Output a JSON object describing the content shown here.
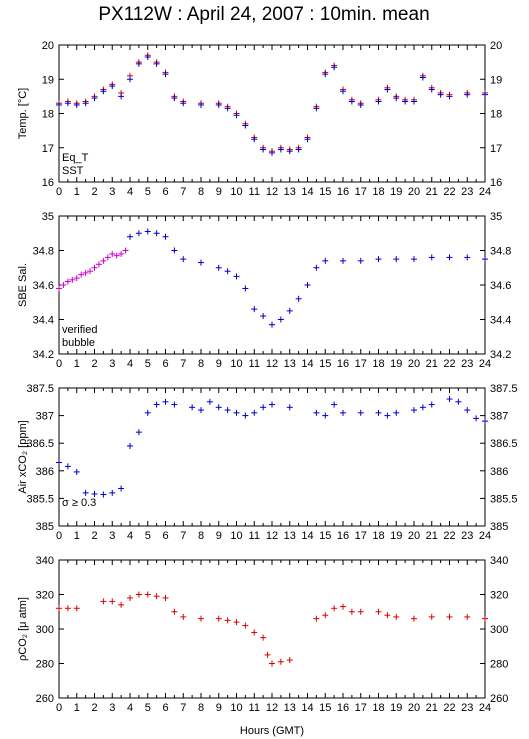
{
  "title": "PX112W : April 24, 2007 : 10min. mean",
  "xlabel": "Hours (GMT)",
  "x_ticks": [
    "0",
    "1",
    "2",
    "3",
    "4",
    "5",
    "6",
    "7",
    "8",
    "9",
    "10",
    "11",
    "12",
    "13",
    "14",
    "15",
    "16",
    "17",
    "18",
    "19",
    "20",
    "21",
    "22",
    "23",
    "24"
  ],
  "colors": {
    "red": "#dd0000",
    "blue": "#0000cc",
    "magenta": "#cc00cc",
    "black": "#000000"
  },
  "chart_data": [
    {
      "type": "scatter",
      "ylabel": "Temp. [°C]",
      "xlim": [
        0,
        24
      ],
      "ylim": [
        16,
        20
      ],
      "y_ticks": [
        "16",
        "17",
        "18",
        "19",
        "20"
      ],
      "legend": [
        "Eq_T",
        "SST"
      ],
      "legend_placement": "bottom-left",
      "series": [
        {
          "name": "Eq_T",
          "color": "#dd0000",
          "points": [
            [
              0,
              18.3
            ],
            [
              0.5,
              18.35
            ],
            [
              1,
              18.3
            ],
            [
              1.5,
              18.35
            ],
            [
              2,
              18.5
            ],
            [
              2.5,
              18.7
            ],
            [
              3,
              18.85
            ],
            [
              3.5,
              18.6
            ],
            [
              4,
              19.1
            ],
            [
              4.5,
              19.5
            ],
            [
              5,
              19.7
            ],
            [
              5.5,
              19.5
            ],
            [
              6,
              19.2
            ],
            [
              6.5,
              18.5
            ],
            [
              7,
              18.35
            ],
            [
              8,
              18.3
            ],
            [
              9,
              18.3
            ],
            [
              9.5,
              18.2
            ],
            [
              10,
              18.0
            ],
            [
              10.5,
              17.7
            ],
            [
              11,
              17.3
            ],
            [
              11.5,
              17.0
            ],
            [
              12,
              16.9
            ],
            [
              12.5,
              17.0
            ],
            [
              13,
              16.95
            ],
            [
              13.5,
              17.0
            ],
            [
              14,
              17.3
            ],
            [
              14.5,
              18.2
            ],
            [
              15,
              19.2
            ],
            [
              15.5,
              19.4
            ],
            [
              16,
              18.7
            ],
            [
              16.5,
              18.4
            ],
            [
              17,
              18.3
            ],
            [
              18,
              18.4
            ],
            [
              18.5,
              18.75
            ],
            [
              19,
              18.5
            ],
            [
              19.5,
              18.4
            ],
            [
              20,
              18.4
            ],
            [
              20.5,
              19.1
            ],
            [
              21,
              18.75
            ],
            [
              21.5,
              18.6
            ],
            [
              22,
              18.55
            ],
            [
              23,
              18.6
            ],
            [
              24,
              18.6
            ]
          ]
        },
        {
          "name": "SST",
          "color": "#0000cc",
          "points": [
            [
              0,
              18.25
            ],
            [
              0.5,
              18.3
            ],
            [
              1,
              18.25
            ],
            [
              1.5,
              18.3
            ],
            [
              2,
              18.45
            ],
            [
              2.5,
              18.65
            ],
            [
              3,
              18.8
            ],
            [
              3.5,
              18.5
            ],
            [
              4,
              19.0
            ],
            [
              4.5,
              19.45
            ],
            [
              5,
              19.65
            ],
            [
              5.5,
              19.45
            ],
            [
              6,
              19.15
            ],
            [
              6.5,
              18.45
            ],
            [
              7,
              18.3
            ],
            [
              8,
              18.25
            ],
            [
              9,
              18.25
            ],
            [
              9.5,
              18.15
            ],
            [
              10,
              17.95
            ],
            [
              10.5,
              17.65
            ],
            [
              11,
              17.25
            ],
            [
              11.5,
              16.95
            ],
            [
              12,
              16.85
            ],
            [
              12.5,
              16.95
            ],
            [
              13,
              16.9
            ],
            [
              13.5,
              16.95
            ],
            [
              14,
              17.25
            ],
            [
              14.5,
              18.15
            ],
            [
              15,
              19.15
            ],
            [
              15.5,
              19.35
            ],
            [
              16,
              18.65
            ],
            [
              16.5,
              18.35
            ],
            [
              17,
              18.25
            ],
            [
              18,
              18.35
            ],
            [
              18.5,
              18.7
            ],
            [
              19,
              18.45
            ],
            [
              19.5,
              18.35
            ],
            [
              20,
              18.35
            ],
            [
              20.5,
              19.05
            ],
            [
              21,
              18.7
            ],
            [
              21.5,
              18.55
            ],
            [
              22,
              18.5
            ],
            [
              23,
              18.55
            ],
            [
              24,
              18.55
            ]
          ]
        }
      ]
    },
    {
      "type": "scatter",
      "ylabel": "SBE Sal.",
      "xlim": [
        0,
        24
      ],
      "ylim": [
        34.2,
        35
      ],
      "y_ticks": [
        "34.2",
        "34.4",
        "34.6",
        "34.8",
        "35"
      ],
      "legend": [
        "verified",
        "bubble"
      ],
      "legend_placement": "bottom-left",
      "series": [
        {
          "name": "bubble",
          "color": "#cc00cc",
          "points": [
            [
              0,
              34.58
            ],
            [
              0.25,
              34.6
            ],
            [
              0.5,
              34.62
            ],
            [
              0.75,
              34.63
            ],
            [
              1,
              34.64
            ],
            [
              1.25,
              34.66
            ],
            [
              1.5,
              34.67
            ],
            [
              1.75,
              34.68
            ],
            [
              2,
              34.7
            ],
            [
              2.25,
              34.72
            ],
            [
              2.5,
              34.74
            ],
            [
              2.75,
              34.76
            ],
            [
              3,
              34.78
            ],
            [
              3.25,
              34.77
            ],
            [
              3.5,
              34.78
            ],
            [
              3.75,
              34.8
            ]
          ]
        },
        {
          "name": "verified",
          "color": "#0000cc",
          "points": [
            [
              4,
              34.88
            ],
            [
              4.5,
              34.9
            ],
            [
              5,
              34.91
            ],
            [
              5.5,
              34.9
            ],
            [
              6,
              34.88
            ],
            [
              6.5,
              34.8
            ],
            [
              7,
              34.75
            ],
            [
              8,
              34.73
            ],
            [
              9,
              34.7
            ],
            [
              9.5,
              34.68
            ],
            [
              10,
              34.65
            ],
            [
              10.5,
              34.58
            ],
            [
              11,
              34.46
            ],
            [
              11.5,
              34.42
            ],
            [
              12,
              34.37
            ],
            [
              12.5,
              34.4
            ],
            [
              13,
              34.45
            ],
            [
              13.5,
              34.52
            ],
            [
              14,
              34.6
            ],
            [
              14.5,
              34.7
            ],
            [
              15,
              34.74
            ],
            [
              16,
              34.74
            ],
            [
              17,
              34.74
            ],
            [
              18,
              34.75
            ],
            [
              19,
              34.75
            ],
            [
              20,
              34.75
            ],
            [
              21,
              34.76
            ],
            [
              22,
              34.76
            ],
            [
              23,
              34.76
            ],
            [
              24,
              34.75
            ]
          ]
        }
      ]
    },
    {
      "type": "scatter",
      "ylabel": "Air xCO₂ [ppm]",
      "xlim": [
        0,
        24
      ],
      "ylim": [
        385,
        387.5
      ],
      "y_ticks": [
        "385",
        "385.5",
        "386",
        "386.5",
        "387",
        "387.5"
      ],
      "annotation": "σ ≥ 0.3",
      "series": [
        {
          "name": "",
          "color": "#0000cc",
          "points": [
            [
              0,
              386.15
            ],
            [
              0.5,
              386.08
            ],
            [
              1,
              385.98
            ],
            [
              1.5,
              385.6
            ],
            [
              2,
              385.58
            ],
            [
              2.5,
              385.57
            ],
            [
              3,
              385.6
            ],
            [
              3.5,
              385.68
            ],
            [
              4,
              386.45
            ],
            [
              4.5,
              386.7
            ],
            [
              5,
              387.05
            ],
            [
              5.5,
              387.2
            ],
            [
              6,
              387.25
            ],
            [
              6.5,
              387.2
            ],
            [
              7.5,
              387.15
            ],
            [
              8,
              387.1
            ],
            [
              8.5,
              387.25
            ],
            [
              9,
              387.15
            ],
            [
              9.5,
              387.1
            ],
            [
              10,
              387.05
            ],
            [
              10.5,
              387.0
            ],
            [
              11,
              387.05
            ],
            [
              11.5,
              387.15
            ],
            [
              12,
              387.2
            ],
            [
              13,
              387.15
            ],
            [
              14.5,
              387.05
            ],
            [
              15,
              387.0
            ],
            [
              15.5,
              387.2
            ],
            [
              16,
              387.05
            ],
            [
              17,
              387.05
            ],
            [
              18,
              387.05
            ],
            [
              18.5,
              387.0
            ],
            [
              19,
              387.05
            ],
            [
              20,
              387.1
            ],
            [
              20.5,
              387.15
            ],
            [
              21,
              387.2
            ],
            [
              22,
              387.3
            ],
            [
              22.5,
              387.25
            ],
            [
              23,
              387.1
            ],
            [
              23.5,
              386.95
            ],
            [
              24,
              386.9
            ]
          ]
        }
      ]
    },
    {
      "type": "scatter",
      "ylabel": "ρCO₂ [μ atm]",
      "xlim": [
        0,
        24
      ],
      "ylim": [
        260,
        340
      ],
      "y_ticks": [
        "260",
        "280",
        "300",
        "320",
        "340"
      ],
      "series": [
        {
          "name": "",
          "color": "#dd0000",
          "points": [
            [
              0,
              312
            ],
            [
              0.5,
              312
            ],
            [
              1,
              312
            ],
            [
              2.5,
              316
            ],
            [
              3,
              316
            ],
            [
              3.5,
              314
            ],
            [
              4,
              318
            ],
            [
              4.5,
              320
            ],
            [
              5,
              320
            ],
            [
              5.5,
              319
            ],
            [
              6,
              318
            ],
            [
              6.5,
              310
            ],
            [
              7,
              307
            ],
            [
              8,
              306
            ],
            [
              9,
              306
            ],
            [
              9.5,
              305
            ],
            [
              10,
              304
            ],
            [
              10.5,
              302
            ],
            [
              11,
              298
            ],
            [
              11.5,
              295
            ],
            [
              11.75,
              285
            ],
            [
              12,
              280
            ],
            [
              12.5,
              281
            ],
            [
              13,
              282
            ],
            [
              14.5,
              306
            ],
            [
              15,
              308
            ],
            [
              15.5,
              312
            ],
            [
              16,
              313
            ],
            [
              16.5,
              310
            ],
            [
              17,
              310
            ],
            [
              18,
              310
            ],
            [
              18.5,
              308
            ],
            [
              19,
              307
            ],
            [
              20,
              306
            ],
            [
              21,
              307
            ],
            [
              22,
              307
            ],
            [
              23,
              307
            ],
            [
              24,
              306
            ]
          ]
        }
      ]
    }
  ]
}
